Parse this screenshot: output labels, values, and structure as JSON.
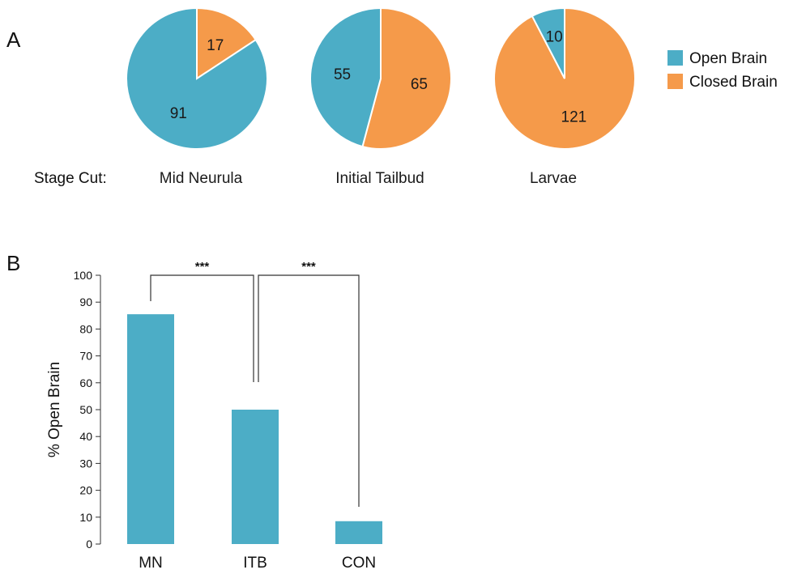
{
  "panel_a_letter": "A",
  "panel_b_letter": "B",
  "colors": {
    "open": "#4CADC6",
    "closed": "#F59A4A"
  },
  "chart_data": [
    {
      "type": "pie",
      "row_label": "Stage Cut:",
      "legend": [
        {
          "name": "Open Brain",
          "color": "#4CADC6"
        },
        {
          "name": "Closed Brain",
          "color": "#F59A4A"
        }
      ],
      "legend_placement": "right",
      "pies": [
        {
          "label": "Mid Neurula",
          "open": 91,
          "closed": 17
        },
        {
          "label": "Initial Tailbud",
          "open": 55,
          "closed": 65
        },
        {
          "label": "Larvae",
          "open": 10,
          "closed": 121
        }
      ]
    },
    {
      "type": "bar",
      "categories": [
        "MN",
        "ITB",
        "CON"
      ],
      "values": [
        85.5,
        50,
        8.5
      ],
      "ylabel": "% Open Brain",
      "ylim": [
        0,
        100
      ],
      "yticks": [
        0,
        10,
        20,
        30,
        40,
        50,
        60,
        70,
        80,
        90,
        100
      ],
      "grid": false,
      "color": "#4CADC6",
      "significance": [
        {
          "from": "MN",
          "to": "ITB",
          "label": "***"
        },
        {
          "from": "ITB",
          "to": "CON",
          "label": "***"
        }
      ]
    }
  ]
}
